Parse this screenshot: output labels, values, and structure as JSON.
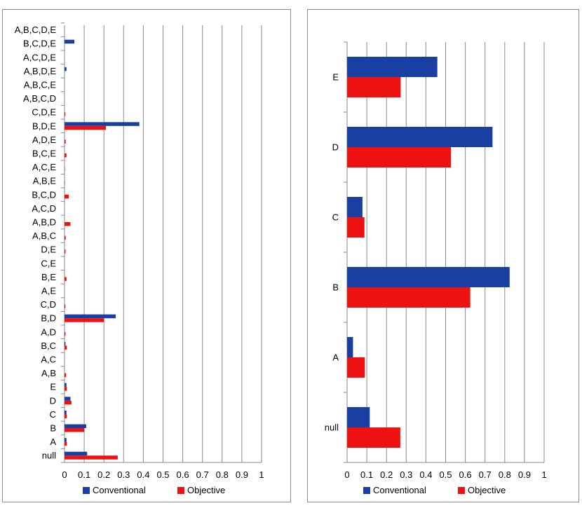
{
  "colors": {
    "conventional": "#1a3fa3",
    "objective": "#ee1111",
    "grid": "#8a8a8a",
    "frame": "#8c8c8c"
  },
  "chart_data": [
    {
      "type": "bar",
      "orientation": "horizontal",
      "categories": [
        "null",
        "A",
        "B",
        "C",
        "D",
        "E",
        "A,B",
        "A,C",
        "B,C",
        "A,D",
        "B,D",
        "C,D",
        "A,E",
        "B,E",
        "C,E",
        "D,E",
        "A,B,C",
        "A,B,D",
        "A,C,D",
        "B,C,D",
        "A,B,E",
        "A,C,E",
        "B,C,E",
        "A,D,E",
        "B,D,E",
        "C,D,E",
        "A,B,C,D",
        "A,B,C,E",
        "A,B,D,E",
        "A,C,D,E",
        "B,C,D,E",
        "A,B,C,D,E"
      ],
      "series": [
        {
          "name": "Conventional",
          "values": [
            0.115,
            0.01,
            0.11,
            0.01,
            0.03,
            0.01,
            0,
            0,
            0.005,
            0,
            0.26,
            0,
            0,
            0,
            0,
            0,
            0,
            0,
            0,
            0,
            0,
            0,
            0,
            0,
            0.38,
            0,
            0,
            0,
            0.01,
            0,
            0.05,
            0
          ]
        },
        {
          "name": "Objective",
          "values": [
            0.27,
            0.012,
            0.1,
            0.012,
            0.035,
            0.012,
            0.008,
            0,
            0.012,
            0.005,
            0.2,
            0.004,
            0,
            0.01,
            0,
            0.005,
            0.006,
            0.03,
            0,
            0.022,
            0.002,
            0.002,
            0.01,
            0.006,
            0.21,
            0.004,
            0,
            0,
            0,
            0,
            0,
            0
          ]
        }
      ],
      "xlim": [
        0,
        1
      ],
      "xticks": [
        "0",
        "0.1",
        "0.2",
        "0.3",
        "0.4",
        "0.5",
        "0.6",
        "0.7",
        "0.8",
        "0.9",
        "1"
      ],
      "grid": true,
      "legend": "bottom"
    },
    {
      "type": "bar",
      "orientation": "horizontal",
      "categories": [
        "null",
        "A",
        "B",
        "C",
        "D",
        "E"
      ],
      "series": [
        {
          "name": "Conventional",
          "values": [
            0.115,
            0.03,
            0.825,
            0.078,
            0.738,
            0.458
          ]
        },
        {
          "name": "Objective",
          "values": [
            0.27,
            0.09,
            0.625,
            0.088,
            0.527,
            0.272
          ]
        }
      ],
      "xlim": [
        0,
        1
      ],
      "xticks": [
        "0",
        "0.1",
        "0.2",
        "0.3",
        "0.4",
        "0.5",
        "0.6",
        "0.7",
        "0.8",
        "0.9",
        "1"
      ],
      "grid": true,
      "legend": "bottom"
    }
  ]
}
